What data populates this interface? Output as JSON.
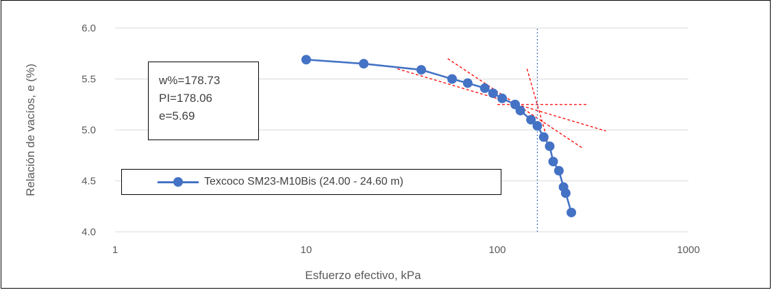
{
  "chart_data": {
    "type": "scatter",
    "title": "",
    "xlabel": "Esfuerzo efectivo, kPa",
    "ylabel": "Relación de vacíos, e (%)",
    "x_scale": "log",
    "xlim": [
      1,
      1000
    ],
    "ylim": [
      4.0,
      6.0
    ],
    "x_ticks": [
      1,
      10,
      100,
      1000
    ],
    "x_tick_labels": [
      "1",
      "10",
      "100",
      "1000"
    ],
    "y_ticks": [
      4.0,
      4.5,
      5.0,
      5.5,
      6.0
    ],
    "y_tick_labels": [
      "4.0",
      "4.5",
      "5.0",
      "5.5",
      "6.0"
    ],
    "grid": "horizontal",
    "legend_position": "lower-left",
    "series": [
      {
        "name": "Texcoco SM23-M10Bis (24.00 - 24.60 m)",
        "color": "#4472c4",
        "style": "line-with-markers",
        "x": [
          10,
          20,
          40,
          58,
          70,
          86,
          95,
          106,
          124,
          132,
          150,
          162,
          175,
          188,
          196,
          210,
          222,
          228,
          244
        ],
        "y": [
          5.69,
          5.65,
          5.59,
          5.5,
          5.46,
          5.41,
          5.36,
          5.31,
          5.25,
          5.19,
          5.1,
          5.04,
          4.93,
          4.84,
          4.69,
          4.6,
          4.44,
          4.38,
          4.19
        ]
      }
    ],
    "construction_lines": [
      {
        "name": "horizontal-line",
        "color": "#ff0000",
        "style": "dashed",
        "x": [
          100,
          300
        ],
        "y": [
          5.25,
          5.25
        ]
      },
      {
        "name": "tangent-line",
        "color": "#ff0000",
        "style": "dashed",
        "x": [
          55,
          280
        ],
        "y": [
          5.7,
          4.82
        ]
      },
      {
        "name": "bisector-line",
        "color": "#ff0000",
        "style": "dashed",
        "x": [
          30,
          370
        ],
        "y": [
          5.6,
          4.99
        ]
      },
      {
        "name": "virgin-line",
        "color": "#ff0000",
        "style": "dashed",
        "x": [
          143,
          200
        ],
        "y": [
          5.6,
          4.65
        ]
      },
      {
        "name": "preconsolidation-line",
        "color": "#4472c4",
        "style": "dotted",
        "x": [
          162,
          162
        ],
        "y": [
          4.0,
          6.0
        ]
      }
    ]
  },
  "properties_box": {
    "lines": [
      "w%=178.73",
      "PI=178.06",
      "e=5.69"
    ]
  },
  "legend": {
    "label": "Texcoco SM23-M10Bis (24.00 - 24.60 m)"
  }
}
